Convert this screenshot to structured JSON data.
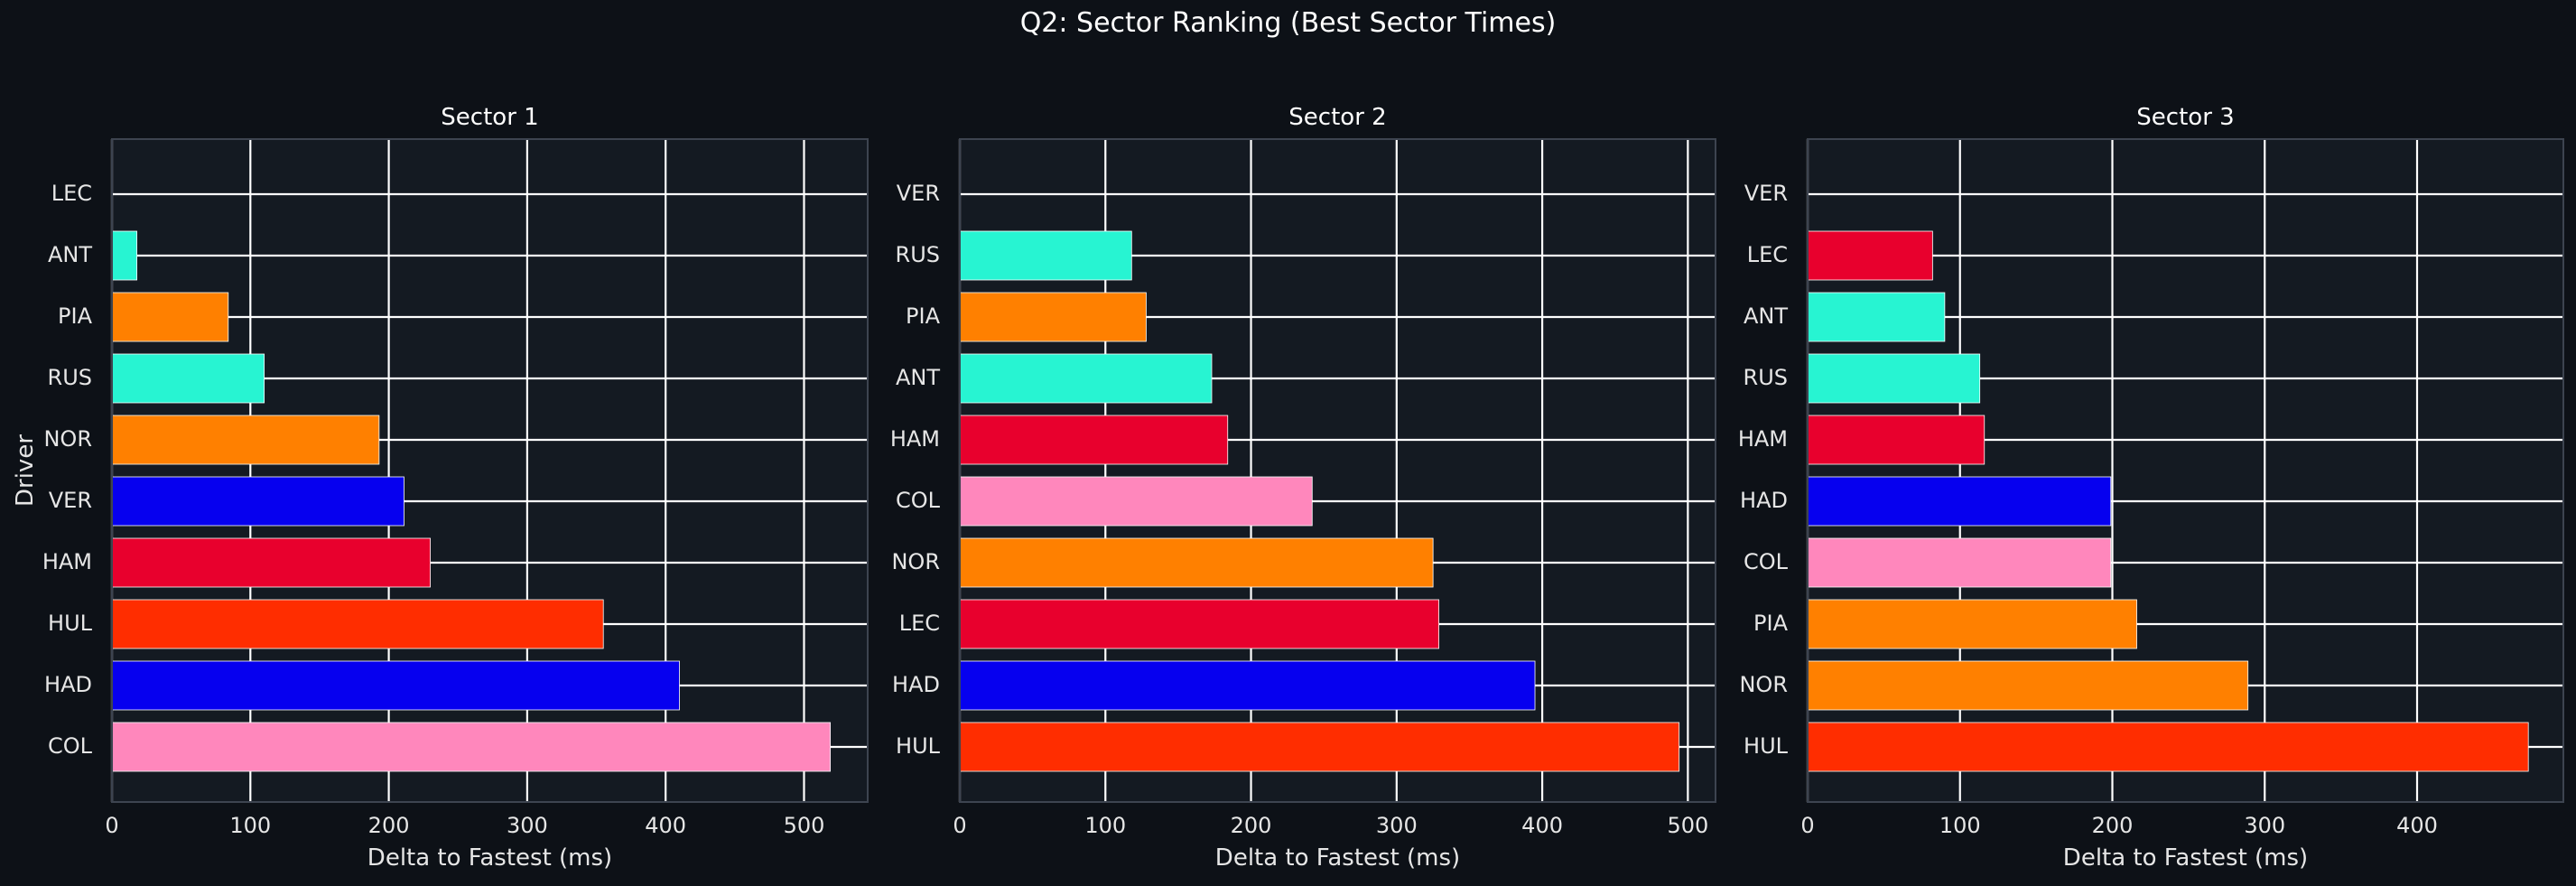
{
  "figure": {
    "title": "Q2: Sector Ranking (Best Sector Times)"
  },
  "colors": {
    "background": "#0d1117",
    "plot_background": "#141a22",
    "grid": "#ffffff",
    "spine": "#3d4450",
    "text": "#e6e6e6"
  },
  "chart_data": [
    {
      "type": "bar",
      "orientation": "horizontal",
      "title": "Sector 1",
      "xlabel": "Delta to Fastest (ms)",
      "ylabel": "Driver",
      "xlim": [
        0,
        546
      ],
      "xticks": [
        0,
        100,
        200,
        300,
        400,
        500
      ],
      "grid": true,
      "categories": [
        "LEC",
        "ANT",
        "PIA",
        "RUS",
        "NOR",
        "VER",
        "HAM",
        "HUL",
        "HAD",
        "COL"
      ],
      "values": [
        0,
        18,
        84,
        110,
        193,
        211,
        230,
        355,
        410,
        519
      ],
      "bar_colors": [
        "#e8002d",
        "#27f4d2",
        "#ff8000",
        "#27f4d2",
        "#ff8000",
        "#0600ef",
        "#e8002d",
        "#ff2d00",
        "#0600ef",
        "#ff87bc"
      ]
    },
    {
      "type": "bar",
      "orientation": "horizontal",
      "title": "Sector 2",
      "xlabel": "Delta to Fastest (ms)",
      "ylabel": "",
      "xlim": [
        0,
        519
      ],
      "xticks": [
        0,
        100,
        200,
        300,
        400,
        500
      ],
      "grid": true,
      "categories": [
        "VER",
        "RUS",
        "PIA",
        "ANT",
        "HAM",
        "COL",
        "NOR",
        "LEC",
        "HAD",
        "HUL"
      ],
      "values": [
        0,
        118,
        128,
        173,
        184,
        242,
        325,
        329,
        395,
        494
      ],
      "bar_colors": [
        "#0600ef",
        "#27f4d2",
        "#ff8000",
        "#27f4d2",
        "#e8002d",
        "#ff87bc",
        "#ff8000",
        "#e8002d",
        "#0600ef",
        "#ff2d00"
      ]
    },
    {
      "type": "bar",
      "orientation": "horizontal",
      "title": "Sector 3",
      "xlabel": "Delta to Fastest (ms)",
      "ylabel": "",
      "xlim": [
        0,
        496
      ],
      "xticks": [
        0,
        100,
        200,
        300,
        400
      ],
      "grid": true,
      "categories": [
        "VER",
        "LEC",
        "ANT",
        "RUS",
        "HAM",
        "HAD",
        "COL",
        "PIA",
        "NOR",
        "HUL"
      ],
      "values": [
        0,
        82,
        90,
        113,
        116,
        199,
        199,
        216,
        289,
        473
      ],
      "bar_colors": [
        "#0600ef",
        "#e8002d",
        "#27f4d2",
        "#27f4d2",
        "#e8002d",
        "#0600ef",
        "#ff87bc",
        "#ff8000",
        "#ff8000",
        "#ff2d00"
      ]
    }
  ]
}
